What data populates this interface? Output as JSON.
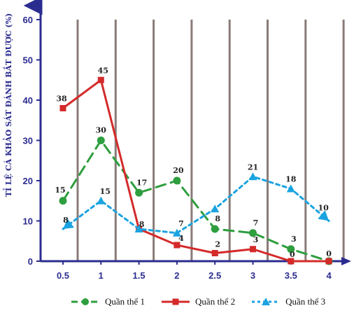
{
  "chart_data": {
    "type": "line",
    "title": "",
    "ylabel": "TỈ LỆ CÁ KHẢO SÁT ĐÁNH BẮT ĐƯỢC (%)",
    "xlabel": "",
    "x": [
      0.5,
      1,
      1.5,
      2,
      2.5,
      3,
      3.5,
      4
    ],
    "x_tick_labels": [
      "0.5",
      "1",
      "1.5",
      "2",
      "2.5",
      "3",
      "3.5",
      "4"
    ],
    "ylim": [
      0,
      60
    ],
    "y_ticks": [
      0,
      10,
      20,
      30,
      40,
      50,
      60
    ],
    "grid": "vertical",
    "legend_position": "bottom",
    "series": [
      {
        "name": "Quần thể 1",
        "color": "#2e9e3e",
        "style": "dashed",
        "marker": "circle",
        "values": [
          15,
          30,
          17,
          20,
          8,
          7,
          3,
          0
        ],
        "labels": [
          "15",
          "30",
          "17",
          "20",
          "8",
          "7",
          "3",
          ""
        ]
      },
      {
        "name": "Quần thể 2",
        "color": "#d42a2a",
        "style": "solid",
        "marker": "square",
        "values": [
          38,
          45,
          8,
          4,
          2,
          3,
          0,
          0
        ],
        "labels": [
          "38",
          "45",
          "8",
          "4",
          "2",
          "3",
          "0",
          "0"
        ]
      },
      {
        "name": "Quần thể 3",
        "color": "#1aa3e0",
        "style": "dotted",
        "marker": "triangle",
        "values": [
          8,
          15,
          8,
          7,
          13,
          21,
          18,
          10
        ],
        "labels": [
          "8",
          "15",
          "",
          "7",
          "",
          "21",
          "18",
          "10"
        ]
      }
    ]
  }
}
